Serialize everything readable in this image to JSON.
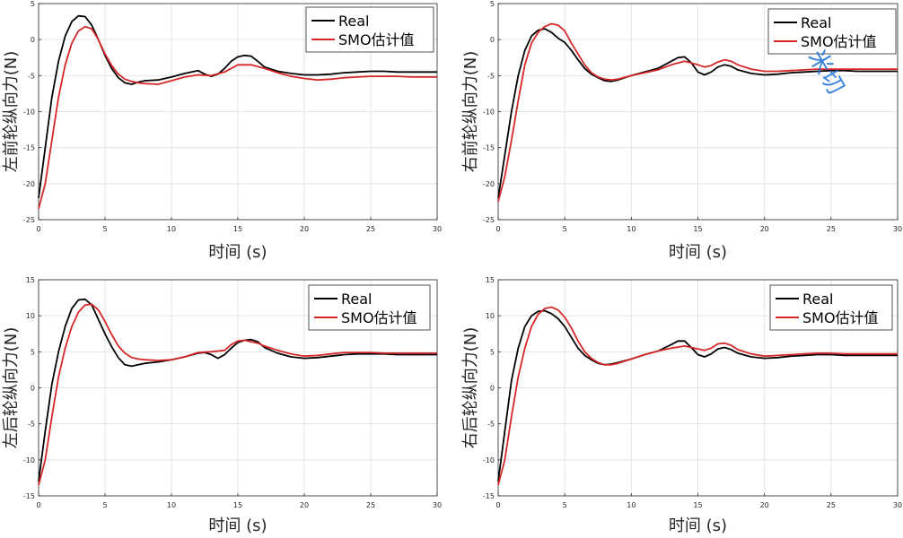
{
  "chart_data": [
    {
      "type": "line",
      "panel": "top-left",
      "xlabel": "时间 (s)",
      "ylabel": "左前轮纵向力(N)",
      "xlim": [
        0,
        30
      ],
      "ylim": [
        -25,
        5
      ],
      "xticks": [
        0,
        5,
        10,
        15,
        20,
        25,
        30
      ],
      "yticks": [
        -25,
        -20,
        -15,
        -10,
        -5,
        0,
        5
      ],
      "grid": true,
      "legend_position": "top-right",
      "series": [
        {
          "name": "Real",
          "color": "#000000",
          "x": [
            0,
            0.5,
            1,
            1.5,
            2,
            2.5,
            3,
            3.5,
            4,
            4.5,
            5,
            5.5,
            6,
            6.5,
            7,
            7.5,
            8,
            9,
            10,
            11,
            12,
            12.5,
            13,
            13.5,
            14,
            14.5,
            15,
            15.5,
            16,
            16.5,
            17,
            18,
            19,
            20,
            21,
            22,
            23,
            24,
            25,
            26,
            27,
            28,
            29,
            30
          ],
          "y": [
            -22,
            -15,
            -8,
            -3,
            0.5,
            2.5,
            3.3,
            3.2,
            2,
            0,
            -2.2,
            -4,
            -5.3,
            -6,
            -6.2,
            -5.9,
            -5.7,
            -5.6,
            -5.2,
            -4.7,
            -4.3,
            -4.8,
            -5.1,
            -4.8,
            -4,
            -3,
            -2.4,
            -2.2,
            -2.3,
            -3,
            -3.8,
            -4.4,
            -4.7,
            -4.9,
            -4.9,
            -4.8,
            -4.6,
            -4.5,
            -4.4,
            -4.4,
            -4.5,
            -4.5,
            -4.5,
            -4.5
          ]
        },
        {
          "name": "SMO估计值",
          "color": "#d62728",
          "x": [
            0,
            0.5,
            1,
            1.5,
            2,
            2.5,
            3,
            3.5,
            4,
            4.5,
            5,
            5.5,
            6,
            6.5,
            7,
            7.5,
            8,
            9,
            10,
            11,
            12,
            13,
            14,
            15,
            16,
            17,
            18,
            19,
            20,
            21,
            22,
            23,
            24,
            25,
            26,
            27,
            28,
            29,
            30
          ],
          "y": [
            -23.5,
            -20,
            -14,
            -8,
            -3.5,
            -0.5,
            1.2,
            1.8,
            1.5,
            0,
            -2,
            -3.6,
            -4.8,
            -5.5,
            -5.8,
            -6,
            -6.1,
            -6.2,
            -5.7,
            -5.2,
            -4.9,
            -5,
            -4.5,
            -3.5,
            -3.5,
            -4,
            -4.6,
            -5.1,
            -5.4,
            -5.6,
            -5.5,
            -5.3,
            -5.2,
            -5.1,
            -5.1,
            -5.1,
            -5.2,
            -5.2,
            -5.2
          ]
        }
      ]
    },
    {
      "type": "line",
      "panel": "top-right",
      "xlabel": "时间 (s)",
      "ylabel": "右前轮纵向力(N)",
      "xlim": [
        0,
        30
      ],
      "ylim": [
        -25,
        5
      ],
      "xticks": [
        0,
        5,
        10,
        15,
        20,
        25,
        30
      ],
      "yticks": [
        -25,
        -20,
        -15,
        -10,
        -5,
        0,
        5
      ],
      "grid": true,
      "legend_position": "top-right",
      "series": [
        {
          "name": "Real",
          "color": "#000000",
          "x": [
            0,
            0.5,
            1,
            1.5,
            2,
            2.5,
            3,
            3.5,
            4,
            4.5,
            5,
            5.5,
            6,
            6.5,
            7,
            7.5,
            8,
            8.5,
            9,
            10,
            11,
            12,
            13,
            13.5,
            14,
            14.5,
            15,
            15.5,
            16,
            16.5,
            17,
            17.5,
            18,
            19,
            20,
            21,
            22,
            23,
            24,
            25,
            26,
            27,
            28,
            29,
            30
          ],
          "y": [
            -22,
            -16,
            -10,
            -5,
            -1.5,
            0.5,
            1.3,
            1.5,
            1,
            0.2,
            -0.4,
            -1.5,
            -2.8,
            -4,
            -4.8,
            -5.3,
            -5.7,
            -5.8,
            -5.6,
            -5,
            -4.5,
            -4,
            -3,
            -2.5,
            -2.4,
            -3.2,
            -4.5,
            -4.9,
            -4.5,
            -3.8,
            -3.5,
            -3.7,
            -4.2,
            -4.7,
            -4.9,
            -4.8,
            -4.6,
            -4.5,
            -4.4,
            -4.3,
            -4.3,
            -4.4,
            -4.4,
            -4.4,
            -4.4
          ]
        },
        {
          "name": "SMO估计值",
          "color": "#d62728",
          "x": [
            0,
            0.5,
            1,
            1.5,
            2,
            2.5,
            3,
            3.5,
            4,
            4.5,
            5,
            5.5,
            6,
            6.5,
            7,
            7.5,
            8,
            8.5,
            9,
            10,
            11,
            12,
            13,
            14,
            15,
            15.5,
            16,
            16.5,
            17,
            17.5,
            18,
            19,
            20,
            21,
            22,
            23,
            24,
            25,
            26,
            27,
            28,
            29,
            30
          ],
          "y": [
            -22.5,
            -19,
            -14,
            -8.5,
            -3.5,
            -0.5,
            1,
            1.8,
            2.2,
            2,
            1.2,
            -0.5,
            -2,
            -3.5,
            -4.6,
            -5.2,
            -5.5,
            -5.6,
            -5.5,
            -5,
            -4.6,
            -4.2,
            -3.5,
            -3,
            -3.5,
            -3.8,
            -3.6,
            -3.1,
            -2.8,
            -3,
            -3.5,
            -4.1,
            -4.4,
            -4.4,
            -4.3,
            -4.2,
            -4.1,
            -4.1,
            -4.1,
            -4.1,
            -4.1,
            -4.1,
            -4.1
          ]
        }
      ]
    },
    {
      "type": "line",
      "panel": "bottom-left",
      "xlabel": "时间 (s)",
      "ylabel": "左后轮纵向力(N)",
      "xlim": [
        0,
        30
      ],
      "ylim": [
        -15,
        15
      ],
      "xticks": [
        0,
        5,
        10,
        15,
        20,
        25,
        30
      ],
      "yticks": [
        -15,
        -10,
        -5,
        0,
        5,
        10,
        15
      ],
      "grid": true,
      "legend_position": "top-right",
      "series": [
        {
          "name": "Real",
          "color": "#000000",
          "x": [
            0,
            0.5,
            1,
            1.5,
            2,
            2.5,
            3,
            3.5,
            4,
            4.5,
            5,
            5.5,
            6,
            6.5,
            7,
            7.5,
            8,
            9,
            10,
            11,
            12,
            12.5,
            13,
            13.5,
            14,
            14.5,
            15,
            15.5,
            16,
            16.5,
            17,
            18,
            19,
            20,
            21,
            22,
            23,
            24,
            25,
            26,
            27,
            28,
            29,
            30
          ],
          "y": [
            -13,
            -6,
            0.5,
            5,
            8.5,
            11,
            12.2,
            12.3,
            11.5,
            9.5,
            7.5,
            5.7,
            4.2,
            3.2,
            3,
            3.2,
            3.4,
            3.6,
            3.9,
            4.3,
            4.8,
            4.9,
            4.6,
            4.1,
            4.6,
            5.5,
            6.3,
            6.6,
            6.7,
            6.4,
            5.6,
            4.8,
            4.3,
            4.1,
            4.2,
            4.4,
            4.6,
            4.7,
            4.7,
            4.7,
            4.6,
            4.6,
            4.6,
            4.6
          ]
        },
        {
          "name": "SMO估计值",
          "color": "#d62728",
          "x": [
            0,
            0.5,
            1,
            1.5,
            2,
            2.5,
            3,
            3.5,
            4,
            4.5,
            5,
            5.5,
            6,
            6.5,
            7,
            7.5,
            8,
            9,
            10,
            11,
            12,
            13,
            14,
            14.5,
            15,
            15.5,
            16,
            16.5,
            17,
            18,
            19,
            20,
            21,
            22,
            23,
            24,
            25,
            26,
            27,
            28,
            29,
            30
          ],
          "y": [
            -13.5,
            -10,
            -4,
            1.5,
            5.5,
            8.5,
            10.5,
            11.5,
            11.6,
            10.8,
            9.2,
            7.4,
            5.8,
            4.8,
            4.2,
            4,
            3.9,
            3.8,
            3.9,
            4.3,
            4.9,
            5,
            5.2,
            6,
            6.5,
            6.6,
            6.4,
            6.2,
            5.8,
            5.2,
            4.7,
            4.4,
            4.5,
            4.7,
            4.9,
            4.9,
            4.9,
            4.8,
            4.8,
            4.8,
            4.8,
            4.8
          ]
        }
      ]
    },
    {
      "type": "line",
      "panel": "bottom-right",
      "xlabel": "时间 (s)",
      "ylabel": "右后轮纵向力(N)",
      "xlim": [
        0,
        30
      ],
      "ylim": [
        -15,
        15
      ],
      "xticks": [
        0,
        5,
        10,
        15,
        20,
        25,
        30
      ],
      "yticks": [
        -15,
        -10,
        -5,
        0,
        5,
        10,
        15
      ],
      "grid": true,
      "legend_position": "top-right",
      "series": [
        {
          "name": "Real",
          "color": "#000000",
          "x": [
            0,
            0.5,
            1,
            1.5,
            2,
            2.5,
            3,
            3.5,
            4,
            4.5,
            5,
            5.5,
            6,
            6.5,
            7,
            7.5,
            8,
            8.5,
            9,
            10,
            11,
            12,
            13,
            13.5,
            14,
            14.5,
            15,
            15.5,
            16,
            16.5,
            17,
            17.5,
            18,
            19,
            20,
            21,
            22,
            23,
            24,
            25,
            26,
            27,
            28,
            29,
            30
          ],
          "y": [
            -13,
            -6,
            1,
            5.5,
            8.5,
            10,
            10.6,
            10.7,
            10.3,
            9.6,
            8.5,
            7,
            5.5,
            4.5,
            3.9,
            3.4,
            3.2,
            3.3,
            3.5,
            4,
            4.6,
            5.1,
            6,
            6.5,
            6.5,
            5.6,
            4.6,
            4.3,
            4.7,
            5.4,
            5.6,
            5.3,
            4.8,
            4.3,
            4.1,
            4.2,
            4.4,
            4.5,
            4.6,
            4.6,
            4.5,
            4.5,
            4.5,
            4.5,
            4.5
          ]
        },
        {
          "name": "SMO估计值",
          "color": "#d62728",
          "x": [
            0,
            0.5,
            1,
            1.5,
            2,
            2.5,
            3,
            3.5,
            4,
            4.5,
            5,
            5.5,
            6,
            6.5,
            7,
            7.5,
            8,
            8.5,
            9,
            10,
            11,
            12,
            13,
            14,
            15,
            15.5,
            16,
            16.5,
            17,
            17.5,
            18,
            19,
            20,
            21,
            22,
            23,
            24,
            25,
            26,
            27,
            28,
            29,
            30
          ],
          "y": [
            -13.5,
            -10,
            -4,
            1.5,
            5.5,
            8.5,
            10.2,
            11,
            11.2,
            10.8,
            9.8,
            8.3,
            6.5,
            5,
            4.1,
            3.5,
            3.2,
            3.2,
            3.4,
            4,
            4.6,
            5.1,
            5.5,
            5.8,
            5.4,
            5.2,
            5.5,
            6.1,
            6.2,
            5.9,
            5.3,
            4.7,
            4.4,
            4.5,
            4.6,
            4.7,
            4.8,
            4.8,
            4.7,
            4.7,
            4.7,
            4.7,
            4.7
          ]
        }
      ]
    }
  ],
  "watermark": {
    "text": "米切"
  }
}
